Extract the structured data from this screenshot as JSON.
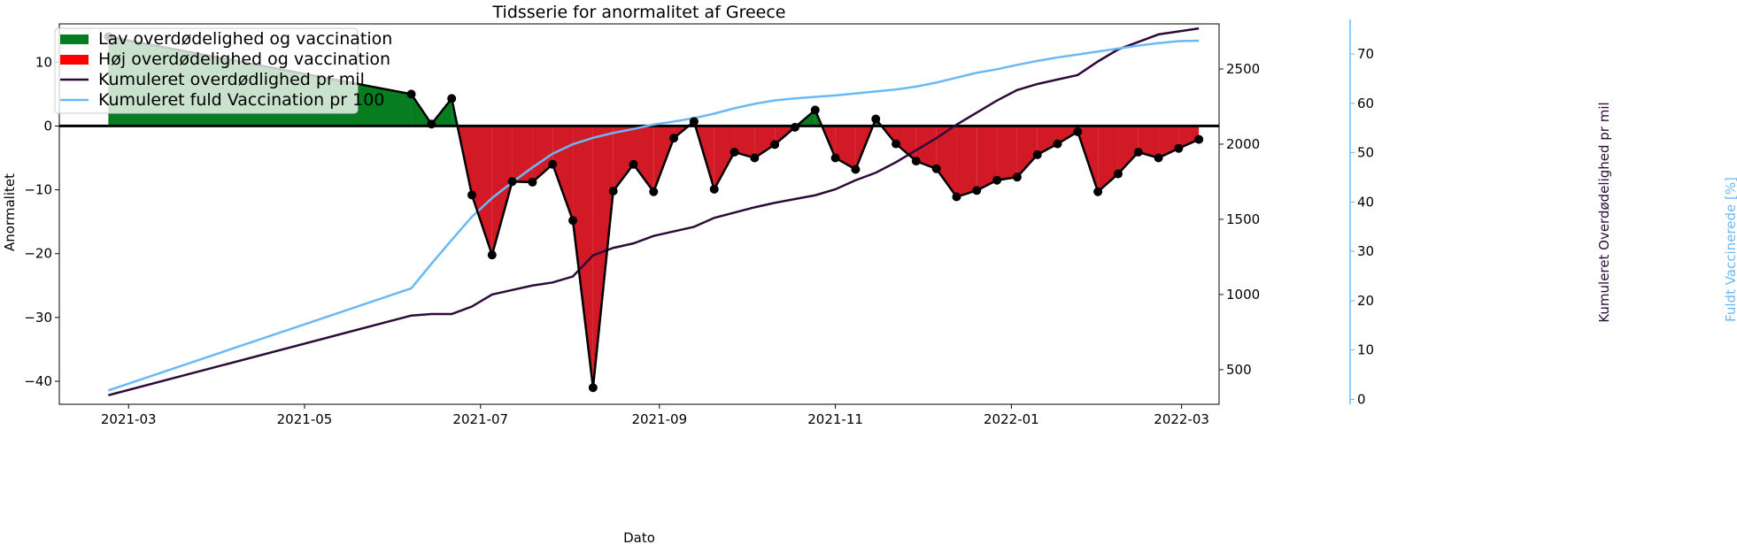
{
  "chart_data": {
    "type": "line",
    "title": "Tidsserie for anormalitet af Greece",
    "xlabel": "Dato",
    "ylabel": "Anormalitet",
    "ylabel_right": "Kumuleret Overdødelighed pr mil",
    "ylabel_right2": "Fuldt Vaccinerede [%]",
    "ylim": [
      -43.6,
      16.0
    ],
    "ylim_right": [
      270,
      2800
    ],
    "ylim_right2": [
      -1,
      77
    ],
    "xlim": [
      "2021-02-05",
      "2022-03-14"
    ],
    "x_ticks": [
      "2021-03-01",
      "2021-05-01",
      "2021-07-01",
      "2021-09-01",
      "2021-11-01",
      "2022-01-01",
      "2022-03-01"
    ],
    "x_tick_labels": [
      "2021-03",
      "2021-05",
      "2021-07",
      "2021-09",
      "2021-11",
      "2022-01",
      "2022-03"
    ],
    "y_ticks": [
      10,
      0,
      -10,
      -20,
      -30,
      -40
    ],
    "y_tick_labels": [
      "10",
      "0",
      "−10",
      "−20",
      "−30",
      "−40"
    ],
    "y_right_ticks": [
      2500,
      2000,
      1500,
      1000,
      500
    ],
    "y_right_tick_labels": [
      "2500",
      "2000",
      "1500",
      "1000",
      "500"
    ],
    "y_right2_ticks": [
      70,
      60,
      50,
      40,
      30,
      20,
      10,
      0
    ],
    "y_right2_tick_labels": [
      "70",
      "60",
      "50",
      "40",
      "30",
      "20",
      "10",
      "0"
    ],
    "grid": false,
    "legend_position": "top-left",
    "legend": [
      {
        "label": "Lav overdødelighed og vaccination",
        "kind": "patch",
        "color": "#067d20"
      },
      {
        "label": "Høj overdødelighed og vaccination",
        "kind": "patch",
        "color": "#ff0000"
      },
      {
        "label": "Kumuleret overdødlighed pr mil",
        "kind": "line",
        "color": "#2e0a3a"
      },
      {
        "label": "Kumuleret fuld Vaccination pr 100",
        "kind": "line",
        "color": "#6ab8f7"
      }
    ],
    "colors": {
      "positive_fill": "#067d20",
      "negative_fill": "#d21a26",
      "anomaly_line": "#000000",
      "cumulative_excess": "#2e0a3a",
      "vaccination": "#6ab8f7",
      "right_axis2": "#6ab8f7",
      "right_axis": "#2e0a3a"
    },
    "series": [
      {
        "name": "Anormalitet",
        "axis": "left",
        "x": [
          "2021-02-22",
          "2021-06-07",
          "2021-06-14",
          "2021-06-21",
          "2021-06-28",
          "2021-07-05",
          "2021-07-12",
          "2021-07-19",
          "2021-07-26",
          "2021-08-02",
          "2021-08-09",
          "2021-08-16",
          "2021-08-23",
          "2021-08-30",
          "2021-09-06",
          "2021-09-13",
          "2021-09-20",
          "2021-09-27",
          "2021-10-04",
          "2021-10-11",
          "2021-10-18",
          "2021-10-25",
          "2021-11-01",
          "2021-11-08",
          "2021-11-15",
          "2021-11-22",
          "2021-11-29",
          "2021-12-06",
          "2021-12-13",
          "2021-12-20",
          "2021-12-27",
          "2022-01-03",
          "2022-01-10",
          "2022-01-17",
          "2022-01-24",
          "2022-01-31",
          "2022-02-07",
          "2022-02-14",
          "2022-02-21",
          "2022-02-28",
          "2022-03-07"
        ],
        "values": [
          14.0,
          5.0,
          0.3,
          4.3,
          -10.8,
          -20.2,
          -8.7,
          -8.8,
          -6.0,
          -14.8,
          -41.0,
          -10.2,
          -6.0,
          -10.3,
          -1.9,
          0.7,
          -9.9,
          -4.1,
          -5.0,
          -2.9,
          -0.2,
          2.5,
          -5.0,
          -6.8,
          1.1,
          -2.8,
          -5.5,
          -6.7,
          -11.1,
          -10.1,
          -8.5,
          -8.0,
          -4.5,
          -2.8,
          -0.9,
          -10.3,
          -7.5,
          -4.1,
          -5.0,
          -3.5,
          -2.1
        ]
      },
      {
        "name": "Kumuleret overdødlighed pr mil",
        "axis": "right",
        "x": [
          "2021-02-22",
          "2021-06-07",
          "2021-06-14",
          "2021-06-21",
          "2021-06-28",
          "2021-07-05",
          "2021-07-12",
          "2021-07-19",
          "2021-07-26",
          "2021-08-02",
          "2021-08-09",
          "2021-08-16",
          "2021-08-23",
          "2021-08-30",
          "2021-09-06",
          "2021-09-13",
          "2021-09-20",
          "2021-09-27",
          "2021-10-04",
          "2021-10-11",
          "2021-10-18",
          "2021-10-25",
          "2021-11-01",
          "2021-11-08",
          "2021-11-15",
          "2021-11-22",
          "2021-11-29",
          "2021-12-06",
          "2021-12-13",
          "2021-12-20",
          "2021-12-27",
          "2022-01-03",
          "2022-01-10",
          "2022-01-17",
          "2022-01-24",
          "2022-01-31",
          "2022-02-07",
          "2022-02-14",
          "2022-02-21",
          "2022-02-28",
          "2022-03-07"
        ],
        "values": [
          330,
          860,
          870,
          870,
          920,
          1000,
          1030,
          1060,
          1080,
          1120,
          1260,
          1310,
          1340,
          1390,
          1420,
          1450,
          1510,
          1545,
          1580,
          1610,
          1635,
          1660,
          1700,
          1760,
          1810,
          1880,
          1960,
          2040,
          2130,
          2210,
          2290,
          2360,
          2400,
          2430,
          2460,
          2550,
          2630,
          2680,
          2730,
          2750,
          2770
        ]
      },
      {
        "name": "Kumuleret fuld Vaccination pr 100",
        "axis": "right2",
        "x": [
          "2021-02-22",
          "2021-06-07",
          "2021-06-14",
          "2021-06-21",
          "2021-06-28",
          "2021-07-05",
          "2021-07-12",
          "2021-07-19",
          "2021-07-26",
          "2021-08-02",
          "2021-08-09",
          "2021-08-16",
          "2021-08-23",
          "2021-08-30",
          "2021-09-06",
          "2021-09-13",
          "2021-09-20",
          "2021-09-27",
          "2021-10-04",
          "2021-10-11",
          "2021-10-18",
          "2021-10-25",
          "2021-11-01",
          "2021-11-08",
          "2021-11-15",
          "2021-11-22",
          "2021-11-29",
          "2021-12-06",
          "2021-12-13",
          "2021-12-20",
          "2021-12-27",
          "2022-01-03",
          "2022-01-10",
          "2022-01-17",
          "2022-01-24",
          "2022-01-31",
          "2022-02-07",
          "2022-02-14",
          "2022-02-21",
          "2022-02-28",
          "2022-03-07"
        ],
        "values": [
          1.8,
          22.5,
          27.5,
          32.3,
          37.0,
          40.8,
          44.0,
          47.0,
          49.8,
          51.7,
          53.0,
          54.0,
          54.8,
          55.7,
          56.3,
          57.0,
          57.9,
          59.0,
          59.9,
          60.6,
          61.0,
          61.3,
          61.6,
          62.0,
          62.4,
          62.8,
          63.4,
          64.2,
          65.2,
          66.2,
          66.9,
          67.8,
          68.6,
          69.3,
          69.9,
          70.5,
          71.1,
          71.7,
          72.2,
          72.6,
          72.7
        ]
      }
    ]
  }
}
